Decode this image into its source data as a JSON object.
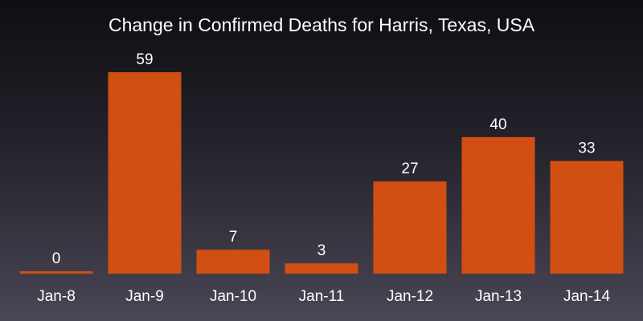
{
  "colors": {
    "bar": "#d14f12",
    "text": "#ffffff"
  },
  "chart_data": {
    "type": "bar",
    "title": "Change in Confirmed Deaths for Harris, Texas, USA",
    "xlabel": "",
    "ylabel": "",
    "categories": [
      "Jan-8",
      "Jan-9",
      "Jan-10",
      "Jan-11",
      "Jan-12",
      "Jan-13",
      "Jan-14"
    ],
    "values": [
      0,
      59,
      7,
      3,
      27,
      40,
      33
    ],
    "ylim": [
      0,
      59
    ],
    "grid": false,
    "legend": "none",
    "data_labels": true
  }
}
